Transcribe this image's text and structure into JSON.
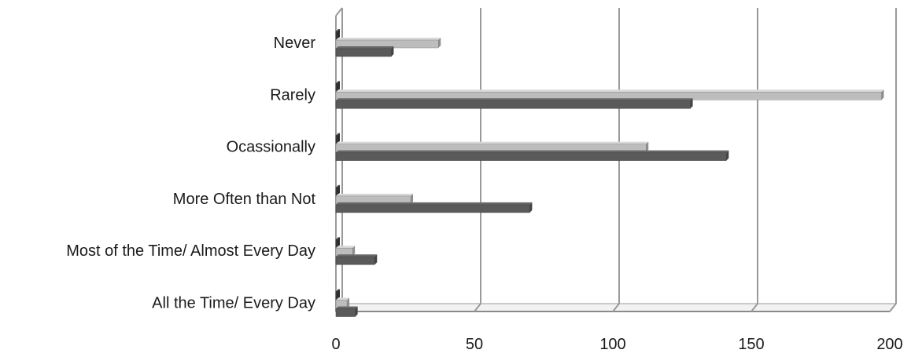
{
  "chart_data": {
    "type": "bar",
    "orientation": "horizontal",
    "style": "3d-clustered",
    "categories": [
      "Never",
      "Rarely",
      "Ocassionally",
      "More Often than Not",
      "Most of the Time/ Almost Every Day",
      "All the Time/ Every Day"
    ],
    "series": [
      {
        "values": [
          0,
          0,
          0,
          0,
          0,
          0
        ],
        "color": "#3a3a3a"
      },
      {
        "values": [
          37,
          197,
          112,
          27,
          6,
          4
        ],
        "color": "#bdbdbd"
      },
      {
        "values": [
          20,
          128,
          141,
          70,
          14,
          7
        ],
        "color": "#5a5a5a"
      }
    ],
    "xlim": [
      0,
      200
    ],
    "ticks": [
      "0",
      "50",
      "100",
      "150",
      "200"
    ],
    "tick_values": [
      0,
      50,
      100,
      150,
      200
    ],
    "grid": true,
    "legend": "none"
  }
}
